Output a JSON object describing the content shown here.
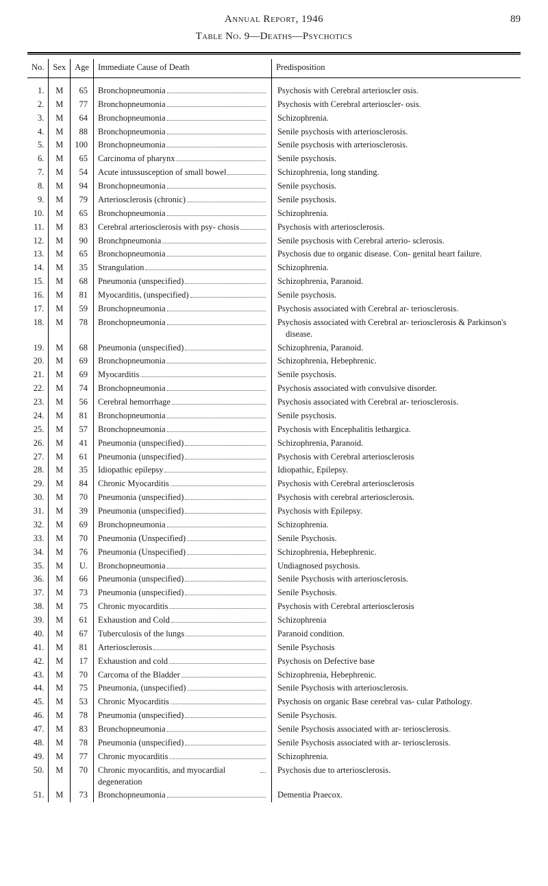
{
  "header": {
    "title": "Annual Report, 1946",
    "page_number": "89"
  },
  "table": {
    "title": "Table No. 9—Deaths—Psychotics",
    "columns": {
      "no": "No.",
      "sex": "Sex",
      "age": "Age",
      "cause": "Immediate Cause of Death",
      "predisposition": "Predisposition"
    },
    "rows": [
      {
        "no": "1.",
        "sex": "M",
        "age": "65",
        "cause": "Bronchopneumonia",
        "predis": "Psychosis with Cerebral arterioscler osis."
      },
      {
        "no": "2.",
        "sex": "M",
        "age": "77",
        "cause": "Bronchopneumonia",
        "predis": "Psychosis with Cerebral arterioscler- osis."
      },
      {
        "no": "3.",
        "sex": "M",
        "age": "64",
        "cause": "Bronchopneumonia",
        "predis": "Schizophrenia."
      },
      {
        "no": "4.",
        "sex": "M",
        "age": "88",
        "cause": "Bronchopneumonia",
        "predis": "Senile psychosis with arteriosclerosis."
      },
      {
        "no": "5.",
        "sex": "M",
        "age": "100",
        "cause": "Bronchopneumonia",
        "predis": "Senile psychosis with arteriosclerosis."
      },
      {
        "no": "6.",
        "sex": "M",
        "age": "65",
        "cause": "Carcinoma of pharynx",
        "predis": "Senile psychosis."
      },
      {
        "no": "7.",
        "sex": "M",
        "age": "54",
        "cause": "Acute intussusception of small bowel",
        "predis": "Schizophrenia, long standing."
      },
      {
        "no": "8.",
        "sex": "M",
        "age": "94",
        "cause": "Bronchopneumonia",
        "predis": "Senile psychosis."
      },
      {
        "no": "9.",
        "sex": "M",
        "age": "79",
        "cause": "Arteriosclerosis (chronic)",
        "predis": "Senile psychosis."
      },
      {
        "no": "10.",
        "sex": "M",
        "age": "65",
        "cause": "Bronchopneumonia",
        "predis": "Schizophrenia."
      },
      {
        "no": "11.",
        "sex": "M",
        "age": "83",
        "cause": "Cerebral arteriosclerosis with psy- chosis",
        "predis": "Psychosis with arteriosclerosis."
      },
      {
        "no": "12.",
        "sex": "M",
        "age": "90",
        "cause": "Bronchpneumonia",
        "predis": "Senile psychosis with Cerebral arterio- sclerosis."
      },
      {
        "no": "13.",
        "sex": "M",
        "age": "65",
        "cause": "Bronchopneumonia",
        "predis": "Psychosis due to organic disease. Con- genital heart failure."
      },
      {
        "no": "14.",
        "sex": "M",
        "age": "35",
        "cause": "Strangulation",
        "predis": "Schizophrenia."
      },
      {
        "no": "15.",
        "sex": "M",
        "age": "68",
        "cause": "Pneumonia (unspecified)",
        "predis": "Schizophrenia, Paranoid."
      },
      {
        "no": "16.",
        "sex": "M",
        "age": "81",
        "cause": "Myocarditis, (unspecified)",
        "predis": "Senile psychosis."
      },
      {
        "no": "17.",
        "sex": "M",
        "age": "59",
        "cause": "Bronchopneumonia",
        "predis": "Psychosis associated with Cerebral ar- teriosclerosis."
      },
      {
        "no": "18.",
        "sex": "M",
        "age": "78",
        "cause": "Bronchopneumonia",
        "predis": "Psychosis associated with Cerebral ar- teriosclerosis & Parkinson's disease."
      },
      {
        "no": "19.",
        "sex": "M",
        "age": "68",
        "cause": "Pneumonia (unspecified)",
        "predis": "Schizophrenia, Paranoid."
      },
      {
        "no": "20.",
        "sex": "M",
        "age": "69",
        "cause": "Bronchopneumonia",
        "predis": "Schizophrenia, Hebephrenic."
      },
      {
        "no": "21.",
        "sex": "M",
        "age": "69",
        "cause": "Myocarditis",
        "predis": "Senile psychosis."
      },
      {
        "no": "22.",
        "sex": "M",
        "age": "74",
        "cause": "Bronchopneumonia",
        "predis": "Psychosis associated with convulsive disorder."
      },
      {
        "no": "23.",
        "sex": "M",
        "age": "56",
        "cause": "Cerebral hemorrhage",
        "predis": "Psychosis associated with Cerebral ar- teriosclerosis."
      },
      {
        "no": "24.",
        "sex": "M",
        "age": "81",
        "cause": "Bronchopneumonia",
        "predis": "Senile psychosis."
      },
      {
        "no": "25.",
        "sex": "M",
        "age": "57",
        "cause": "Bronchopneumonia",
        "predis": "Psychosis with Encephalitis lethargica."
      },
      {
        "no": "26.",
        "sex": "M",
        "age": "41",
        "cause": "Pneumonia (unspecified)",
        "predis": "Schizophrenia, Paranoid."
      },
      {
        "no": "27.",
        "sex": "M",
        "age": "61",
        "cause": "Pneumonia (unspecified)",
        "predis": "Psychosis with Cerebral arteriosclerosis"
      },
      {
        "no": "28.",
        "sex": "M",
        "age": "35",
        "cause": "Idiopathic epilepsy",
        "predis": "Idiopathic, Epilepsy."
      },
      {
        "no": "29.",
        "sex": "M",
        "age": "84",
        "cause": "Chronic Myocarditis",
        "predis": "Psychosis with Cerebral arteriosclerosis"
      },
      {
        "no": "30.",
        "sex": "M",
        "age": "70",
        "cause": "Pneumonia (unspecified)",
        "predis": "Psychosis with cerebral arteriosclerosis."
      },
      {
        "no": "31.",
        "sex": "M",
        "age": "39",
        "cause": "Pneumonia (unspecified)",
        "predis": "Psychosis with Epilepsy."
      },
      {
        "no": "32.",
        "sex": "M",
        "age": "69",
        "cause": "Bronchopneumonia",
        "predis": "Schizophrenia."
      },
      {
        "no": "33.",
        "sex": "M",
        "age": "70",
        "cause": "Pneumonia (Unspecified)",
        "predis": "Senile Psychosis."
      },
      {
        "no": "34.",
        "sex": "M",
        "age": "76",
        "cause": "Pneumonia (Unspecified)",
        "predis": "Schizophrenia, Hebephrenic."
      },
      {
        "no": "35.",
        "sex": "M",
        "age": "U.",
        "cause": "Bronchopneumonia",
        "predis": "Undiagnosed psychosis."
      },
      {
        "no": "36.",
        "sex": "M",
        "age": "66",
        "cause": "Pneumonia (unspecified)",
        "predis": "Senile Psychosis with arteriosclerosis."
      },
      {
        "no": "37.",
        "sex": "M",
        "age": "73",
        "cause": "Pneumonia (unspecified)",
        "predis": "Senile Psychosis."
      },
      {
        "no": "38.",
        "sex": "M",
        "age": "75",
        "cause": "Chronic myocarditis",
        "predis": "Psychosis with Cerebral arteriosclerosis"
      },
      {
        "no": "39.",
        "sex": "M",
        "age": "61",
        "cause": "Exhaustion and Cold",
        "predis": "Schizophrenia"
      },
      {
        "no": "40.",
        "sex": "M",
        "age": "67",
        "cause": "Tuberculosis of the lungs",
        "predis": "Paranoid condition."
      },
      {
        "no": "41.",
        "sex": "M",
        "age": "81",
        "cause": "Arteriosclerosis",
        "predis": "Senile Psychosis"
      },
      {
        "no": "42.",
        "sex": "M",
        "age": "17",
        "cause": "Exhaustion and cold",
        "predis": "Psychosis on Defective base"
      },
      {
        "no": "43.",
        "sex": "M",
        "age": "70",
        "cause": "Carcoma of the Bladder",
        "predis": "Schizophrenia, Hebephrenic."
      },
      {
        "no": "44.",
        "sex": "M",
        "age": "75",
        "cause": "Pneumonia, (unspecified)",
        "predis": "Senile Psychosis with arteriosclerosis."
      },
      {
        "no": "45.",
        "sex": "M",
        "age": "53",
        "cause": "Chronic Myocarditis",
        "predis": "Psychosis on organic Base cerebral vas- cular Pathology."
      },
      {
        "no": "46.",
        "sex": "M",
        "age": "78",
        "cause": "Pneumonia (unspecified)",
        "predis": "Senile Psychosis."
      },
      {
        "no": "47.",
        "sex": "M",
        "age": "83",
        "cause": "Bronchopneumonia",
        "predis": "Senile Psychosis associated with ar- teriosclerosis."
      },
      {
        "no": "48.",
        "sex": "M",
        "age": "78",
        "cause": "Pneumonia (unspecified)",
        "predis": "Senile Psychosis associated with ar- teriosclerosis."
      },
      {
        "no": "49.",
        "sex": "M",
        "age": "77",
        "cause": "Chronic myocarditis",
        "predis": "Schizophrenia."
      },
      {
        "no": "50.",
        "sex": "M",
        "age": "70",
        "cause": "Chronic myocarditis, and myocardial degeneration",
        "predis": "Psychosis due to arteriosclerosis."
      },
      {
        "no": "51.",
        "sex": "M",
        "age": "73",
        "cause": "Bronchopneumonia",
        "predis": "Dementia Praecox."
      }
    ]
  },
  "style": {
    "background_color": "#ffffff",
    "text_color": "#1a1a1a",
    "rule_color": "#000000",
    "font_family": "Times New Roman"
  }
}
